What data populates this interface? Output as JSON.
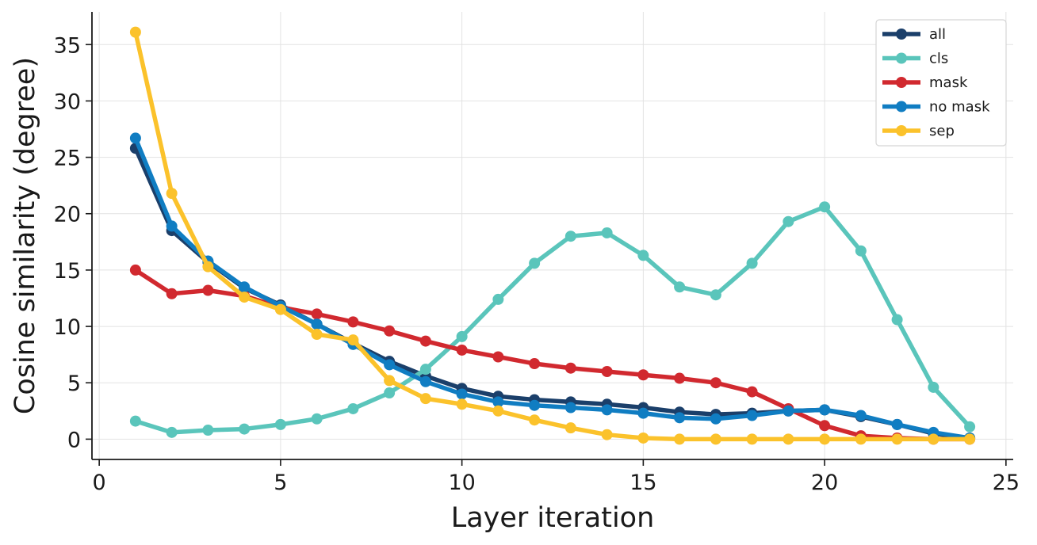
{
  "chart_data": {
    "type": "line",
    "title": "",
    "xlabel": "Layer iteration",
    "ylabel": "Cosine similarity (degree)",
    "xlim": [
      -0.2,
      25.2
    ],
    "ylim": [
      -1.8,
      37.9
    ],
    "xticks": [
      0,
      5,
      10,
      15,
      20,
      25
    ],
    "yticks": [
      0,
      5,
      10,
      15,
      20,
      25,
      30,
      35
    ],
    "grid": true,
    "legend_position": "top-right",
    "x": [
      1,
      2,
      3,
      4,
      5,
      6,
      7,
      8,
      9,
      10,
      11,
      12,
      13,
      14,
      15,
      16,
      17,
      18,
      19,
      20,
      21,
      22,
      23,
      24
    ],
    "series": [
      {
        "name": "all",
        "color": "#1b3f6a",
        "values": [
          25.8,
          18.5,
          15.7,
          13.4,
          11.9,
          10.2,
          8.5,
          6.9,
          5.6,
          4.5,
          3.8,
          3.5,
          3.3,
          3.1,
          2.8,
          2.4,
          2.2,
          2.3,
          2.5,
          2.6,
          2.0,
          1.3,
          0.5,
          0.1
        ]
      },
      {
        "name": "cls",
        "color": "#5ac5bb",
        "values": [
          1.6,
          0.6,
          0.8,
          0.9,
          1.3,
          1.8,
          2.7,
          4.1,
          6.2,
          9.1,
          12.4,
          15.6,
          18.0,
          18.3,
          16.3,
          13.5,
          12.8,
          15.6,
          19.3,
          20.6,
          16.7,
          10.6,
          4.6,
          1.1
        ]
      },
      {
        "name": "mask",
        "color": "#d1292f",
        "values": [
          15.0,
          12.9,
          13.2,
          12.7,
          11.7,
          11.1,
          10.4,
          9.6,
          8.7,
          7.9,
          7.3,
          6.7,
          6.3,
          6.0,
          5.7,
          5.4,
          5.0,
          4.2,
          2.7,
          1.2,
          0.3,
          0.1,
          0.0,
          0.0
        ]
      },
      {
        "name": "no mask",
        "color": "#107dc2",
        "values": [
          26.7,
          18.9,
          15.8,
          13.5,
          11.8,
          10.2,
          8.4,
          6.6,
          5.1,
          4.0,
          3.3,
          3.0,
          2.8,
          2.6,
          2.3,
          1.9,
          1.8,
          2.1,
          2.5,
          2.6,
          2.1,
          1.3,
          0.6,
          0.1
        ]
      },
      {
        "name": "sep",
        "color": "#fbc22b",
        "values": [
          36.1,
          21.8,
          15.3,
          12.6,
          11.5,
          9.3,
          8.8,
          5.2,
          3.6,
          3.1,
          2.5,
          1.7,
          1.0,
          0.4,
          0.1,
          0.0,
          0.0,
          0.0,
          0.0,
          0.0,
          0.0,
          0.0,
          0.0,
          0.0
        ]
      }
    ]
  }
}
